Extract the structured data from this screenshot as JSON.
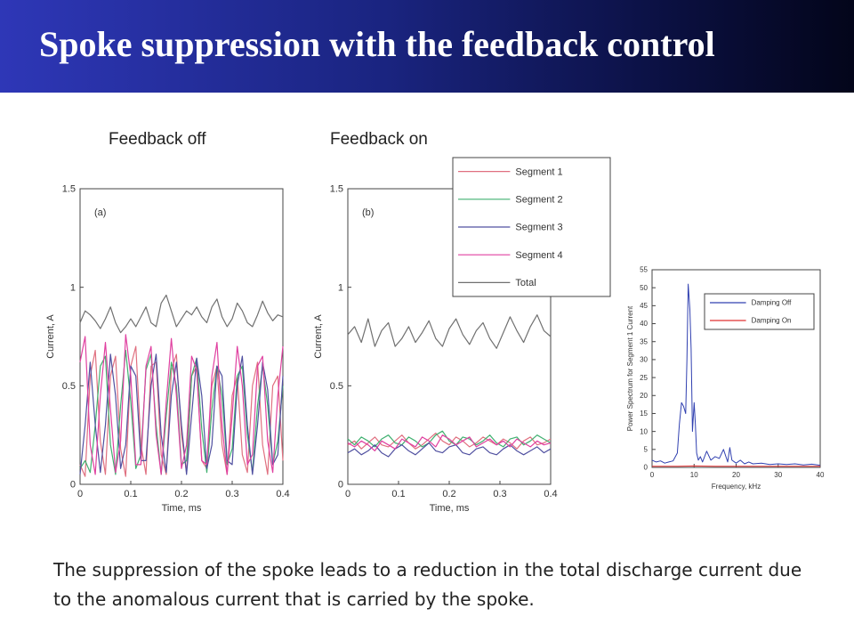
{
  "slide": {
    "title": "Spoke suppression with the feedback control",
    "label_off": "Feedback off",
    "label_on": "Feedback on",
    "caption": "The suppression of the spoke leads to a reduction in the total discharge current due to the anomalous current that is carried by the spoke."
  },
  "colors": {
    "segment1": "#e07080",
    "segment2": "#40b070",
    "segment3": "#5050a0",
    "segment4": "#e040a0",
    "total": "#707070",
    "damping_off": "#3040b0",
    "damping_on": "#e03030"
  },
  "chart_data": [
    {
      "type": "line",
      "panel": "(a)",
      "xlabel": "Time, ms",
      "ylabel": "Current, A",
      "xlim": [
        0,
        0.4
      ],
      "ylim": [
        0,
        1.5
      ],
      "xticks": [
        "0",
        "0.1",
        "0.2",
        "0.3",
        "0.4"
      ],
      "yticks": [
        "0",
        "0.5",
        "1",
        "1.5"
      ],
      "series": [
        {
          "name": "Segment 1",
          "color_key": "segment1",
          "values": [
            0.1,
            0.04,
            0.55,
            0.68,
            0.22,
            0.05,
            0.55,
            0.65,
            0.18,
            0.04,
            0.6,
            0.7,
            0.2,
            0.05,
            0.6,
            0.62,
            0.15,
            0.05,
            0.58,
            0.66,
            0.25,
            0.06,
            0.55,
            0.6,
            0.12,
            0.08,
            0.5,
            0.6,
            0.2,
            0.05,
            0.45,
            0.55,
            0.15,
            0.06,
            0.5,
            0.62,
            0.2,
            0.05,
            0.5,
            0.55,
            0.12
          ]
        },
        {
          "name": "Segment 2",
          "color_key": "segment2",
          "values": [
            0.08,
            0.12,
            0.06,
            0.3,
            0.6,
            0.65,
            0.2,
            0.05,
            0.4,
            0.68,
            0.42,
            0.08,
            0.15,
            0.58,
            0.66,
            0.3,
            0.05,
            0.35,
            0.62,
            0.5,
            0.1,
            0.12,
            0.55,
            0.64,
            0.28,
            0.06,
            0.38,
            0.6,
            0.45,
            0.1,
            0.18,
            0.55,
            0.6,
            0.25,
            0.06,
            0.4,
            0.6,
            0.4,
            0.1,
            0.22,
            0.5
          ]
        },
        {
          "name": "Segment 3",
          "color_key": "segment3",
          "values": [
            0.05,
            0.3,
            0.62,
            0.3,
            0.06,
            0.3,
            0.66,
            0.45,
            0.08,
            0.2,
            0.6,
            0.55,
            0.12,
            0.12,
            0.5,
            0.66,
            0.25,
            0.06,
            0.45,
            0.62,
            0.3,
            0.05,
            0.35,
            0.64,
            0.45,
            0.08,
            0.2,
            0.6,
            0.55,
            0.12,
            0.1,
            0.5,
            0.65,
            0.3,
            0.05,
            0.3,
            0.62,
            0.48,
            0.1,
            0.15,
            0.55
          ]
        },
        {
          "name": "Segment 4",
          "color_key": "segment4",
          "values": [
            0.62,
            0.75,
            0.2,
            0.05,
            0.45,
            0.72,
            0.38,
            0.06,
            0.22,
            0.76,
            0.55,
            0.1,
            0.1,
            0.6,
            0.7,
            0.25,
            0.05,
            0.42,
            0.74,
            0.45,
            0.08,
            0.2,
            0.65,
            0.58,
            0.12,
            0.1,
            0.55,
            0.72,
            0.3,
            0.05,
            0.35,
            0.7,
            0.5,
            0.1,
            0.15,
            0.6,
            0.65,
            0.22,
            0.06,
            0.45,
            0.7
          ]
        },
        {
          "name": "Total",
          "color_key": "total",
          "values": [
            0.82,
            0.88,
            0.86,
            0.83,
            0.79,
            0.84,
            0.9,
            0.82,
            0.77,
            0.8,
            0.84,
            0.8,
            0.85,
            0.9,
            0.82,
            0.8,
            0.92,
            0.96,
            0.88,
            0.8,
            0.84,
            0.88,
            0.86,
            0.9,
            0.85,
            0.82,
            0.9,
            0.94,
            0.85,
            0.8,
            0.84,
            0.92,
            0.88,
            0.82,
            0.8,
            0.86,
            0.93,
            0.87,
            0.83,
            0.86,
            0.85
          ]
        }
      ]
    },
    {
      "type": "line",
      "panel": "(b)",
      "xlabel": "Time, ms",
      "ylabel": "Current, A",
      "xlim": [
        0,
        0.4
      ],
      "ylim": [
        0,
        1.5
      ],
      "xticks": [
        "0",
        "0.1",
        "0.2",
        "0.3",
        "0.4"
      ],
      "yticks": [
        "0",
        "0.5",
        "1",
        "1.5"
      ],
      "legend": {
        "position": "top-right",
        "entries": [
          "Segment 1",
          "Segment 2",
          "Segment 3",
          "Segment 4",
          "Total"
        ]
      },
      "series": [
        {
          "name": "Segment 1",
          "color_key": "segment1",
          "values": [
            0.2,
            0.22,
            0.18,
            0.21,
            0.24,
            0.2,
            0.19,
            0.22,
            0.25,
            0.21,
            0.18,
            0.2,
            0.23,
            0.26,
            0.22,
            0.2,
            0.24,
            0.22,
            0.19,
            0.21,
            0.24,
            0.22,
            0.2,
            0.23,
            0.21,
            0.18,
            0.22,
            0.24,
            0.2,
            0.21,
            0.23
          ]
        },
        {
          "name": "Segment 2",
          "color_key": "segment2",
          "values": [
            0.23,
            0.2,
            0.24,
            0.22,
            0.19,
            0.23,
            0.25,
            0.21,
            0.2,
            0.24,
            0.22,
            0.19,
            0.21,
            0.25,
            0.27,
            0.22,
            0.2,
            0.24,
            0.23,
            0.2,
            0.22,
            0.25,
            0.21,
            0.19,
            0.23,
            0.24,
            0.2,
            0.22,
            0.25,
            0.23,
            0.21
          ]
        },
        {
          "name": "Segment 3",
          "color_key": "segment3",
          "values": [
            0.16,
            0.18,
            0.15,
            0.17,
            0.2,
            0.16,
            0.14,
            0.18,
            0.2,
            0.17,
            0.15,
            0.18,
            0.21,
            0.17,
            0.16,
            0.19,
            0.2,
            0.16,
            0.15,
            0.18,
            0.19,
            0.16,
            0.15,
            0.18,
            0.2,
            0.17,
            0.15,
            0.17,
            0.19,
            0.16,
            0.18
          ]
        },
        {
          "name": "Segment 4",
          "color_key": "segment4",
          "values": [
            0.21,
            0.19,
            0.22,
            0.2,
            0.17,
            0.22,
            0.2,
            0.18,
            0.23,
            0.21,
            0.19,
            0.24,
            0.22,
            0.19,
            0.25,
            0.23,
            0.2,
            0.22,
            0.24,
            0.19,
            0.21,
            0.23,
            0.2,
            0.22,
            0.19,
            0.23,
            0.21,
            0.19,
            0.22,
            0.2,
            0.21
          ]
        },
        {
          "name": "Total",
          "color_key": "total",
          "values": [
            0.76,
            0.8,
            0.72,
            0.84,
            0.7,
            0.78,
            0.82,
            0.7,
            0.74,
            0.8,
            0.72,
            0.77,
            0.83,
            0.74,
            0.7,
            0.79,
            0.84,
            0.76,
            0.71,
            0.78,
            0.82,
            0.74,
            0.69,
            0.77,
            0.85,
            0.78,
            0.72,
            0.8,
            0.86,
            0.78,
            0.75
          ]
        }
      ]
    },
    {
      "type": "line",
      "xlabel": "Frequency, kHz",
      "ylabel": "Power Spectrum for Segment 1 Current",
      "xlim": [
        0,
        40
      ],
      "ylim": [
        0,
        55
      ],
      "xticks": [
        "0",
        "10",
        "20",
        "30",
        "40"
      ],
      "yticks": [
        "0",
        "5",
        "10",
        "15",
        "20",
        "25",
        "30",
        "35",
        "40",
        "45",
        "50",
        "55"
      ],
      "legend": {
        "position": "top-right",
        "entries": [
          "Damping Off",
          "Damping On"
        ]
      },
      "series": [
        {
          "name": "Damping Off",
          "color_key": "damping_off",
          "x": [
            0,
            1,
            2,
            3,
            4,
            5,
            6,
            6.5,
            7,
            7.5,
            8,
            8.3,
            8.6,
            9,
            9.3,
            9.6,
            10,
            10.3,
            10.6,
            11,
            11.5,
            12,
            13,
            14,
            15,
            16,
            17,
            18,
            18.5,
            19,
            20,
            21,
            22,
            23,
            24,
            26,
            28,
            30,
            32,
            34,
            36,
            38,
            40
          ],
          "y": [
            2,
            1.5,
            1.8,
            1.2,
            1.5,
            1.8,
            4,
            12,
            18,
            17,
            15,
            30,
            51,
            44,
            33,
            10,
            18,
            12,
            4,
            2,
            3,
            1.5,
            4.5,
            2,
            3,
            2.5,
            5,
            1.5,
            5.5,
            2,
            1.2,
            2,
            1,
            1.5,
            1,
            1.2,
            0.8,
            1,
            0.8,
            1,
            0.7,
            0.9,
            0.6
          ]
        },
        {
          "name": "Damping On",
          "color_key": "damping_on",
          "x": [
            0,
            5,
            10,
            15,
            20,
            25,
            30,
            35,
            40
          ],
          "y": [
            0.3,
            0.3,
            0.4,
            0.3,
            0.3,
            0.3,
            0.3,
            0.3,
            0.3
          ]
        }
      ]
    }
  ]
}
